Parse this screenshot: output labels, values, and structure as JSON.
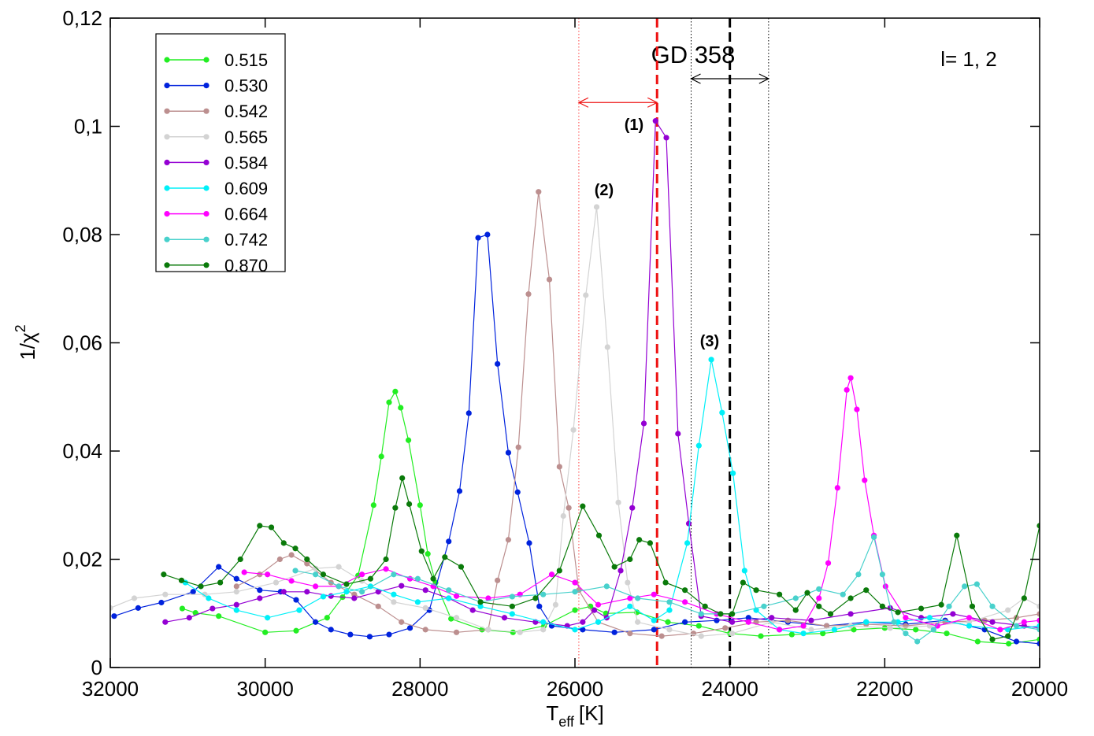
{
  "chart_data": {
    "type": "line",
    "x_label": "T",
    "x_label_subscript": "eff",
    "x_label_unit": "[K]",
    "y_label": "1/χ",
    "y_label_superscript": "2",
    "xlim": [
      32000,
      20000
    ],
    "xticks": [
      32000,
      30000,
      28000,
      26000,
      24000,
      22000,
      20000
    ],
    "ylim": [
      0,
      0.12
    ],
    "yticks": [
      0,
      {
        "value": 0.02,
        "label": "0,02"
      },
      {
        "value": 0.04,
        "label": "0,04"
      },
      {
        "value": 0.06,
        "label": "0,06"
      },
      {
        "value": 0.08,
        "label": "0,08"
      },
      {
        "value": 0.1,
        "label": "0,1"
      },
      {
        "value": 0.12,
        "label": "0,12"
      }
    ],
    "annotations": [
      "GD 358",
      "l= 1, 2",
      "(1)",
      "(2)",
      "(3)"
    ],
    "vlines": [
      {
        "x": 25950,
        "color": "#ff4444",
        "style": "dotted"
      },
      {
        "x": 24500,
        "color": "#000000",
        "style": "dotted"
      },
      {
        "x": 23500,
        "color": "#000000",
        "style": "dotted"
      },
      {
        "x": 24940,
        "color": "#ee1111",
        "style": "dashed"
      },
      {
        "x": 24000,
        "color": "#000000",
        "style": "dashed"
      }
    ],
    "arrows": [
      {
        "x": [
          25950,
          24940
        ],
        "y": 0.1044,
        "color": "#ee1111"
      },
      {
        "x": [
          24500,
          23500
        ],
        "y": 0.1088,
        "color": "#000000"
      }
    ],
    "series": [
      {
        "name": "0.515",
        "color": "#22ee22",
        "x": [
          31070,
          30900,
          30600,
          30000,
          29600,
          29200,
          29000,
          28800,
          28600,
          28500,
          28400,
          28320,
          28250,
          28150,
          28000,
          27900,
          27800,
          27600,
          27200,
          26800,
          26400,
          26000,
          25800,
          25600,
          25200,
          24800,
          24400,
          24000,
          23600,
          23200,
          22800,
          22400,
          22000,
          21600,
          21200,
          20800,
          20400,
          20000
        ],
        "values": [
          0.0109,
          0.0101,
          0.0095,
          0.0065,
          0.0068,
          0.0092,
          0.013,
          0.017,
          0.03,
          0.039,
          0.049,
          0.051,
          0.048,
          0.042,
          0.03,
          0.021,
          0.0157,
          0.009,
          0.007,
          0.0065,
          0.0077,
          0.0106,
          0.0113,
          0.01,
          0.0102,
          0.0084,
          0.0077,
          0.0063,
          0.0058,
          0.0061,
          0.0063,
          0.007,
          0.0073,
          0.007,
          0.0063,
          0.0048,
          0.0044,
          0.0052
        ]
      },
      {
        "name": "0.530",
        "color": "#0022dd",
        "x": [
          31950,
          31640,
          31340,
          30930,
          30600,
          30370,
          30070,
          29800,
          29600,
          29350,
          29150,
          28900,
          28650,
          28400,
          28130,
          27880,
          27630,
          27490,
          27370,
          27250,
          27130,
          27000,
          26860,
          26740,
          26590,
          26460,
          26300,
          25900,
          25490,
          24980,
          24580,
          24170,
          23760,
          23250,
          22750,
          22240,
          21730,
          21220,
          20710,
          20300,
          20000
        ],
        "values": [
          0.0095,
          0.011,
          0.012,
          0.014,
          0.0186,
          0.0164,
          0.0143,
          0.014,
          0.0125,
          0.0084,
          0.007,
          0.0061,
          0.0057,
          0.0061,
          0.0073,
          0.0106,
          0.0233,
          0.0326,
          0.047,
          0.0794,
          0.08,
          0.0561,
          0.0397,
          0.0324,
          0.023,
          0.0113,
          0.0077,
          0.007,
          0.0065,
          0.007,
          0.0084,
          0.0087,
          0.0092,
          0.0084,
          0.0077,
          0.0084,
          0.008,
          0.0087,
          0.007,
          0.0048,
          0.0044
        ]
      },
      {
        "name": "0.542",
        "color": "#bc8f8f",
        "x": [
          30370,
          30070,
          29810,
          29660,
          29460,
          29150,
          28850,
          28540,
          28240,
          27930,
          27530,
          27120,
          27000,
          26860,
          26730,
          26600,
          26470,
          26330,
          26200,
          26080,
          25950,
          25700,
          25290,
          24880,
          24470,
          24060,
          23660,
          23250,
          22750,
          22240,
          21730,
          21220,
          20710,
          20300,
          20000
        ],
        "values": [
          0.015,
          0.0172,
          0.02,
          0.0208,
          0.0192,
          0.0157,
          0.0135,
          0.0113,
          0.0084,
          0.007,
          0.0065,
          0.007,
          0.0161,
          0.0236,
          0.0407,
          0.069,
          0.0879,
          0.0717,
          0.0371,
          0.0295,
          0.0143,
          0.0084,
          0.0063,
          0.0058,
          0.0063,
          0.0073,
          0.0084,
          0.0087,
          0.0077,
          0.008,
          0.0077,
          0.0084,
          0.0087,
          0.0092,
          0.0099
        ]
      },
      {
        "name": "0.565",
        "color": "#d3d3d3",
        "x": [
          32000,
          31690,
          31290,
          30780,
          30370,
          29860,
          29350,
          29050,
          28750,
          28340,
          27930,
          27530,
          27120,
          26710,
          26410,
          26250,
          26150,
          26020,
          25860,
          25720,
          25580,
          25440,
          25320,
          25190,
          24780,
          24370,
          23970,
          23460,
          22950,
          22440,
          21930,
          21420,
          20910,
          20410,
          20200,
          20000
        ],
        "values": [
          0.011,
          0.0128,
          0.0135,
          0.0135,
          0.014,
          0.0157,
          0.0183,
          0.0186,
          0.016,
          0.0121,
          0.011,
          0.0092,
          0.007,
          0.0065,
          0.007,
          0.0116,
          0.028,
          0.0439,
          0.0688,
          0.0851,
          0.0592,
          0.0305,
          0.0157,
          0.0084,
          0.007,
          0.0058,
          0.0063,
          0.0084,
          0.007,
          0.0077,
          0.0073,
          0.0077,
          0.0084,
          0.0106,
          0.0128,
          0.0113
        ]
      },
      {
        "name": "0.584",
        "color": "#9400d3",
        "x": [
          31290,
          30980,
          30680,
          30370,
          30070,
          29760,
          29460,
          29150,
          28850,
          28540,
          28240,
          27930,
          27630,
          27320,
          26910,
          26510,
          26100,
          25900,
          25750,
          25590,
          25410,
          25260,
          25110,
          24960,
          24820,
          24670,
          24530,
          24370,
          23970,
          23460,
          22950,
          22440,
          21930,
          21530,
          21120,
          20610,
          20200,
          20000
        ],
        "values": [
          0.0084,
          0.0092,
          0.0109,
          0.0116,
          0.0128,
          0.014,
          0.014,
          0.0132,
          0.0128,
          0.014,
          0.0151,
          0.0143,
          0.0128,
          0.0106,
          0.0092,
          0.0084,
          0.0077,
          0.0084,
          0.0106,
          0.0092,
          0.0179,
          0.0295,
          0.0451,
          0.101,
          0.0979,
          0.0432,
          0.0266,
          0.0095,
          0.0084,
          0.0092,
          0.0087,
          0.0099,
          0.011,
          0.0092,
          0.0099,
          0.0084,
          0.0077,
          0.0073
        ]
      },
      {
        "name": "0.609",
        "color": "#00f0f8",
        "x": [
          31030,
          30730,
          30370,
          29970,
          29560,
          29250,
          28950,
          28640,
          28340,
          28030,
          27630,
          27220,
          26810,
          26410,
          26000,
          25700,
          25290,
          24980,
          24780,
          24550,
          24400,
          24240,
          24100,
          23960,
          23810,
          23660,
          23360,
          23050,
          22650,
          22240,
          21830,
          21420,
          20910,
          20410,
          20000
        ],
        "values": [
          0.0157,
          0.0128,
          0.0106,
          0.0092,
          0.0106,
          0.0131,
          0.014,
          0.015,
          0.0135,
          0.0121,
          0.0128,
          0.0113,
          0.0099,
          0.0084,
          0.007,
          0.0084,
          0.0113,
          0.0087,
          0.0106,
          0.023,
          0.041,
          0.0569,
          0.0471,
          0.0359,
          0.0179,
          0.0106,
          0.007,
          0.0063,
          0.007,
          0.0084,
          0.0084,
          0.0092,
          0.0077,
          0.007,
          0.0077
        ]
      },
      {
        "name": "0.664",
        "color": "#ff00ff",
        "x": [
          30270,
          29970,
          29660,
          29350,
          29050,
          28750,
          28440,
          28130,
          27830,
          27530,
          27120,
          26710,
          26300,
          26000,
          25700,
          25290,
          24980,
          24580,
          24170,
          23760,
          23360,
          23050,
          22850,
          22730,
          22610,
          22490,
          22440,
          22360,
          22260,
          22140,
          21990,
          21730,
          21320,
          20910,
          20510,
          20200,
          20000
        ],
        "values": [
          0.0176,
          0.0172,
          0.016,
          0.015,
          0.015,
          0.0172,
          0.0182,
          0.0164,
          0.015,
          0.0132,
          0.0128,
          0.0135,
          0.0172,
          0.0157,
          0.0116,
          0.0128,
          0.0135,
          0.0121,
          0.0099,
          0.0084,
          0.007,
          0.0077,
          0.0128,
          0.0193,
          0.0332,
          0.0513,
          0.0535,
          0.0477,
          0.0346,
          0.0244,
          0.015,
          0.0092,
          0.0077,
          0.0092,
          0.007,
          0.0084,
          0.0087
        ]
      },
      {
        "name": "0.742",
        "color": "#48d1cc",
        "x": [
          29610,
          29350,
          29050,
          28750,
          28340,
          28030,
          27630,
          27220,
          26810,
          26410,
          26000,
          25590,
          25190,
          24780,
          24370,
          23970,
          23560,
          23150,
          22850,
          22540,
          22340,
          22140,
          22030,
          21880,
          21730,
          21580,
          21370,
          21170,
          20970,
          20810,
          20610,
          20300,
          20000
        ],
        "values": [
          0.0179,
          0.0172,
          0.015,
          0.014,
          0.0172,
          0.0164,
          0.0143,
          0.0121,
          0.0131,
          0.0135,
          0.014,
          0.015,
          0.0128,
          0.0121,
          0.0099,
          0.0099,
          0.0113,
          0.0128,
          0.0145,
          0.0135,
          0.0172,
          0.0241,
          0.0172,
          0.0084,
          0.0063,
          0.0048,
          0.007,
          0.0113,
          0.015,
          0.0154,
          0.0113,
          0.0077,
          0.007
        ]
      },
      {
        "name": "0.870",
        "color": "#0a7a0a",
        "x": [
          31310,
          31080,
          30830,
          30580,
          30320,
          30070,
          29920,
          29760,
          29610,
          29460,
          29250,
          28950,
          28640,
          28440,
          28320,
          28230,
          28140,
          27980,
          27830,
          27680,
          27470,
          27220,
          26810,
          26510,
          26200,
          25900,
          25690,
          25490,
          25290,
          25170,
          25030,
          24830,
          24580,
          24320,
          24120,
          23970,
          23830,
          23660,
          23360,
          23150,
          23000,
          22850,
          22700,
          22440,
          22240,
          22030,
          21830,
          21530,
          21270,
          21070,
          20870,
          20610,
          20410,
          20200,
          20000
        ],
        "values": [
          0.0172,
          0.0161,
          0.015,
          0.0157,
          0.02,
          0.0262,
          0.0259,
          0.023,
          0.022,
          0.02,
          0.0172,
          0.0154,
          0.0164,
          0.02,
          0.0295,
          0.035,
          0.0302,
          0.0215,
          0.0164,
          0.0204,
          0.0186,
          0.0121,
          0.0113,
          0.0128,
          0.0179,
          0.0298,
          0.0244,
          0.0186,
          0.02,
          0.0236,
          0.023,
          0.0157,
          0.0143,
          0.0113,
          0.0099,
          0.0099,
          0.0157,
          0.0143,
          0.0135,
          0.0106,
          0.0138,
          0.0113,
          0.0099,
          0.0128,
          0.0143,
          0.0113,
          0.0102,
          0.0109,
          0.0116,
          0.0244,
          0.0113,
          0.0052,
          0.0058,
          0.0128,
          0.0262
        ]
      }
    ]
  }
}
